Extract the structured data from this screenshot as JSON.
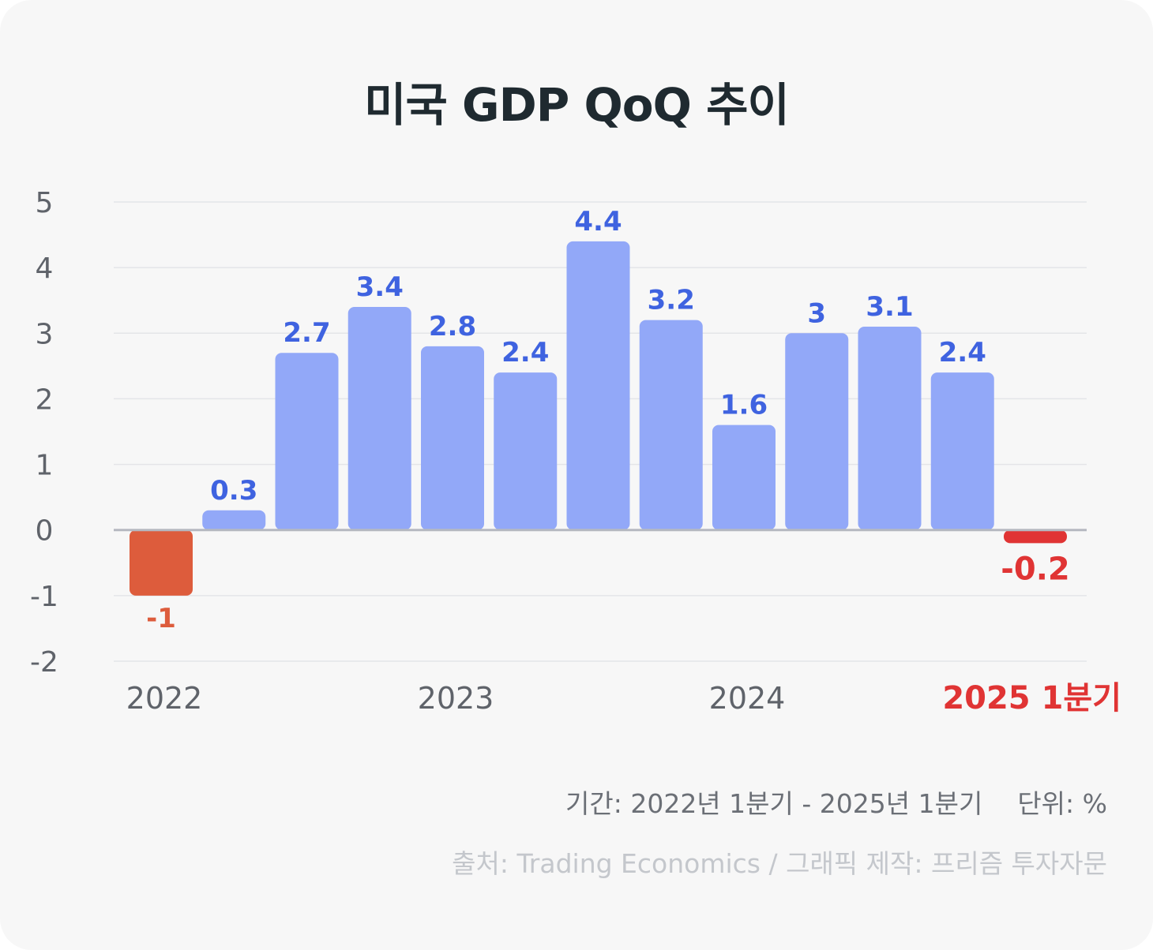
{
  "title": "미국 GDP QoQ 추이",
  "chart_data": {
    "type": "bar",
    "values": [
      -1,
      0.3,
      2.7,
      3.4,
      2.8,
      2.4,
      4.4,
      3.2,
      1.6,
      3,
      3.1,
      2.4,
      -0.2
    ],
    "value_labels": [
      "-1",
      "0.3",
      "2.7",
      "3.4",
      "2.8",
      "2.4",
      "4.4",
      "3.2",
      "1.6",
      "3",
      "3.1",
      "2.4",
      "-0.2"
    ],
    "x_tick_labels": [
      {
        "label": "2022",
        "bar_index": 0
      },
      {
        "label": "2023",
        "bar_index": 4
      },
      {
        "label": "2024",
        "bar_index": 8
      },
      {
        "label": "2025 1분기",
        "bar_index": 12,
        "highlight": true
      }
    ],
    "yticks": [
      "5",
      "4",
      "3",
      "2",
      "1",
      "0",
      "-1",
      "-2"
    ],
    "ylim": [
      -2,
      5
    ],
    "grid": true,
    "colors": {
      "bar": "#92a8f8",
      "bar_label": "#3f63e0",
      "first_negative": "#dd5c3c",
      "last_negative": "#e03434",
      "axis_text": "#5f636a",
      "highlight_text": "#e03434"
    }
  },
  "footer": {
    "period": "기간: 2022년 1분기 - 2025년 1분기",
    "unit": "단위: %",
    "source": "출처: Trading Economics / 그래픽 제작: 프리즘 투자자문"
  }
}
